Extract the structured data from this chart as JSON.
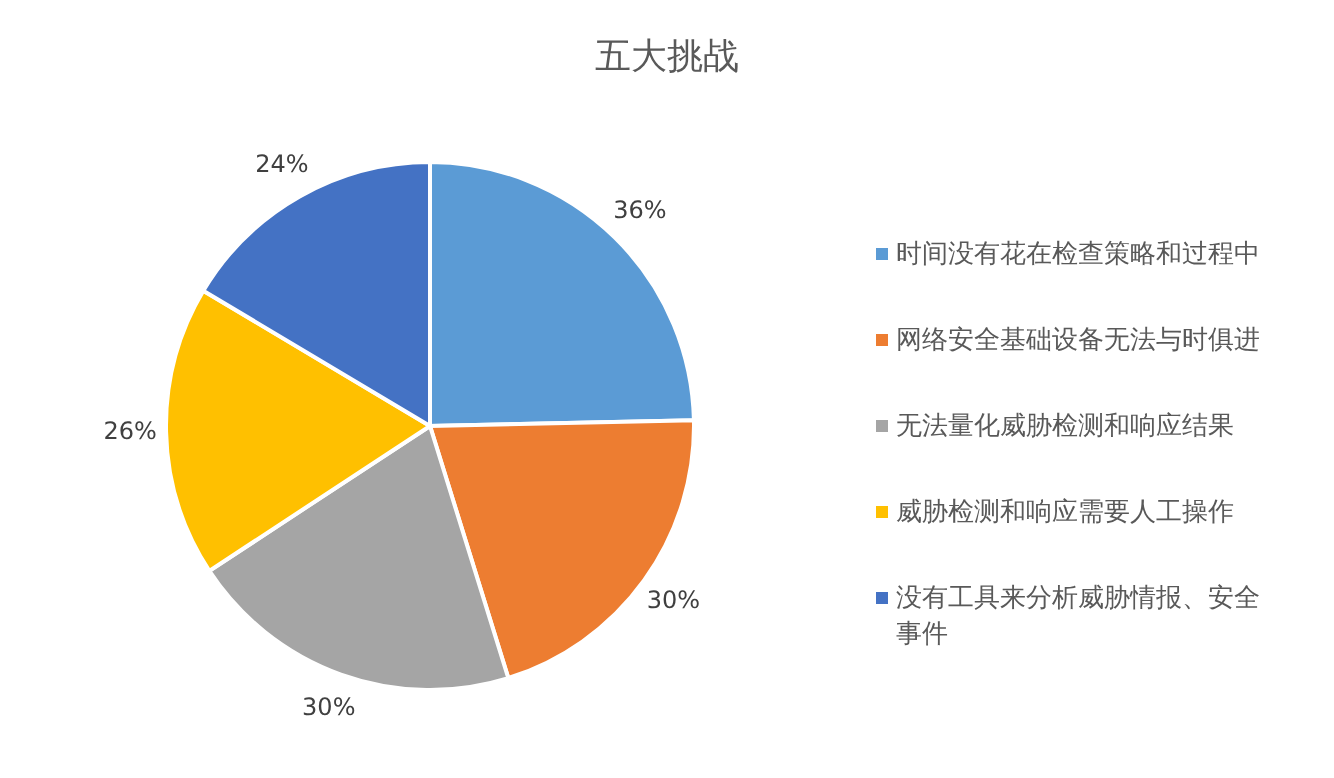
{
  "chart_data": {
    "type": "pie",
    "title": "五大挑战",
    "categories": [
      "时间没有花在检查策略和过程中",
      "网络安全基础设备无法与时俱进",
      "无法量化威胁检测和响应结果",
      "威胁检测和响应需要人工操作",
      "没有工具来分析威胁情报、安全事件"
    ],
    "values": [
      36,
      30,
      30,
      26,
      24
    ],
    "value_labels": [
      "36%",
      "30%",
      "30%",
      "26%",
      "24%"
    ],
    "colors": [
      "#5b9bd5",
      "#ed7d31",
      "#a5a5a5",
      "#ffc000",
      "#4472c4"
    ],
    "legend": "right"
  }
}
